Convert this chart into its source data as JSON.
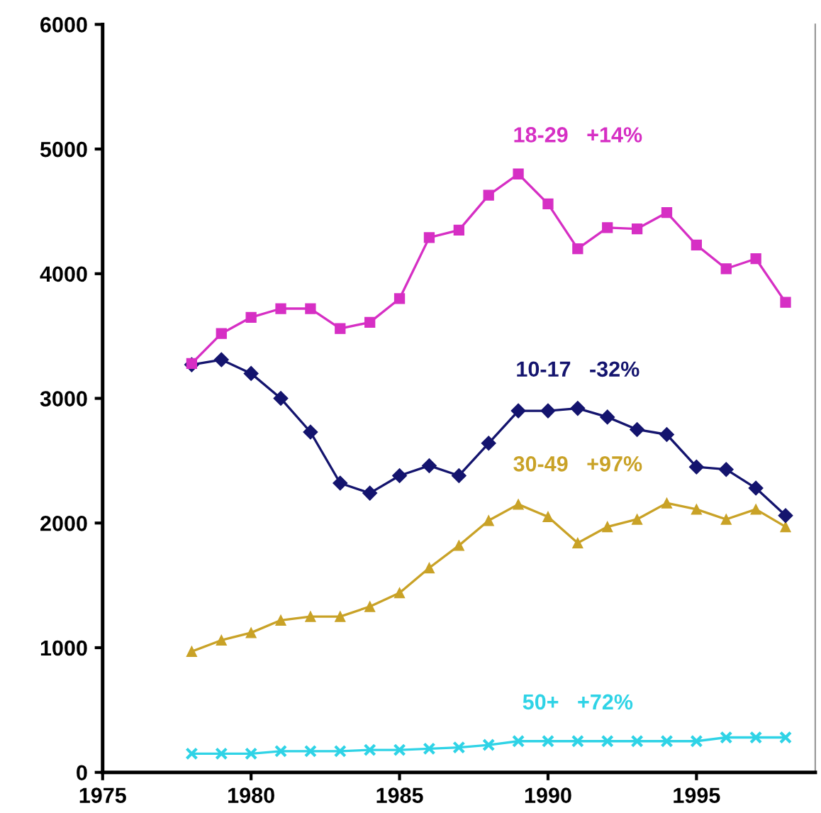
{
  "chart_data": {
    "type": "line",
    "x": [
      1978,
      1979,
      1980,
      1981,
      1982,
      1983,
      1984,
      1985,
      1986,
      1987,
      1988,
      1989,
      1990,
      1991,
      1992,
      1993,
      1994,
      1995,
      1996,
      1997,
      1998
    ],
    "series": [
      {
        "name": "18-29   +14%",
        "color": "#d62fc4",
        "marker": "square",
        "values": [
          3280,
          3520,
          3650,
          3720,
          3720,
          3560,
          3610,
          3800,
          4290,
          4350,
          4630,
          4800,
          4560,
          4200,
          4370,
          4360,
          4490,
          4230,
          4040,
          4120,
          3770
        ]
      },
      {
        "name": "10-17   -32%",
        "color": "#14146e",
        "marker": "diamond",
        "values": [
          3270,
          3310,
          3200,
          3000,
          2730,
          2320,
          2240,
          2380,
          2460,
          2380,
          2640,
          2900,
          2900,
          2920,
          2850,
          2750,
          2710,
          2450,
          2430,
          2280,
          2060
        ]
      },
      {
        "name": "30-49   +97%",
        "color": "#c9a227",
        "marker": "triangle",
        "values": [
          970,
          1060,
          1120,
          1220,
          1250,
          1250,
          1330,
          1440,
          1640,
          1820,
          2020,
          2150,
          2050,
          1840,
          1970,
          2030,
          2160,
          2110,
          2030,
          2110,
          1970
        ]
      },
      {
        "name": "50+   +72%",
        "color": "#2fd3e6",
        "marker": "cross",
        "values": [
          150,
          150,
          150,
          170,
          170,
          170,
          180,
          180,
          190,
          200,
          220,
          250,
          250,
          250,
          250,
          250,
          250,
          250,
          280,
          280,
          280
        ]
      }
    ],
    "xlim": [
      1975,
      1999
    ],
    "xticks": [
      1975,
      1980,
      1985,
      1990,
      1995
    ],
    "ylim": [
      0,
      6000
    ],
    "yticks": [
      0,
      1000,
      2000,
      3000,
      4000,
      5000,
      6000
    ],
    "grid": false,
    "legend": false,
    "line_style": "solid"
  }
}
